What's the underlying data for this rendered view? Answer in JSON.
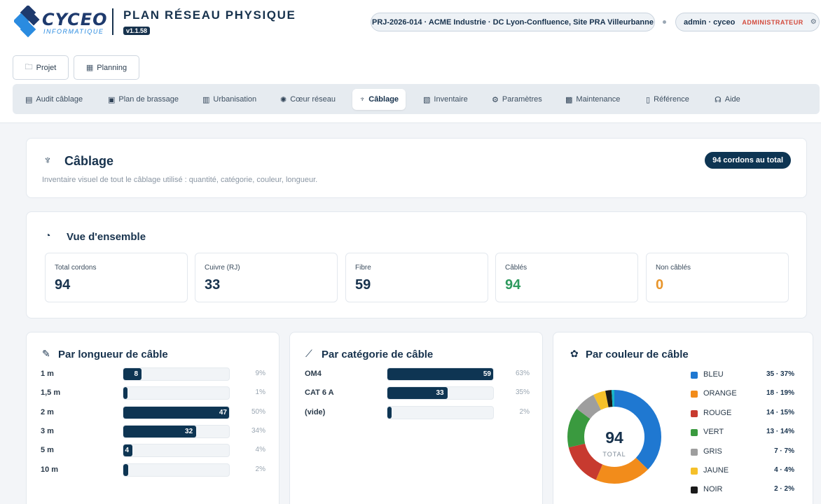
{
  "brand": {
    "logo_word": "CYCEO",
    "logo_sub": "INFORMATIQUE",
    "app_title": "PLAN RÉSEAU PHYSIQUE",
    "version": "v1.1.58"
  },
  "header": {
    "project": "PRJ-2026-014 · ACME Industrie · DC Lyon-Confluence, Site PRA Villeurbanne",
    "user": "admin · cyceo",
    "role": "ADMINISTRATEUR"
  },
  "buttons": {
    "projet": "Projet",
    "planning": "Planning"
  },
  "tabs": [
    {
      "label": "Audit câblage",
      "icon": "keyboard-icon"
    },
    {
      "label": "Plan de brassage",
      "icon": "patch-icon"
    },
    {
      "label": "Urbanisation",
      "icon": "building-icon"
    },
    {
      "label": "Cœur réseau",
      "icon": "network-icon"
    },
    {
      "label": "Câblage",
      "icon": "plug-icon"
    },
    {
      "label": "Inventaire",
      "icon": "inventory-icon"
    },
    {
      "label": "Paramètres",
      "icon": "gear-icon"
    },
    {
      "label": "Maintenance",
      "icon": "floppy-icon"
    },
    {
      "label": "Référence",
      "icon": "document-icon"
    },
    {
      "label": "Aide",
      "icon": "headset-icon"
    }
  ],
  "active_tab": "Câblage",
  "page": {
    "title": "Câblage",
    "subtitle": "Inventaire visuel de tout le câblage utilisé : quantité, catégorie, couleur, longueur.",
    "badge": "94 cordons au total"
  },
  "overview": {
    "title": "Vue d'ensemble",
    "stats": [
      {
        "label": "Total cordons",
        "value": "94",
        "color": "#17324d"
      },
      {
        "label": "Cuivre (RJ)",
        "value": "33",
        "color": "#17324d"
      },
      {
        "label": "Fibre",
        "value": "59",
        "color": "#17324d"
      },
      {
        "label": "Câblés",
        "value": "94",
        "color": "#2e9a5e"
      },
      {
        "label": "Non câblés",
        "value": "0",
        "color": "#e8952b"
      }
    ]
  },
  "chart_data": [
    {
      "type": "bar",
      "title": "Par longueur de câble",
      "categories": [
        "1 m",
        "1,5 m",
        "2 m",
        "3 m",
        "5 m",
        "10 m"
      ],
      "values": [
        8,
        1,
        47,
        32,
        4,
        2
      ],
      "labels": [
        "8",
        "",
        "47",
        "32",
        "4",
        ""
      ],
      "percents": [
        "9%",
        "1%",
        "50%",
        "34%",
        "4%",
        "2%"
      ],
      "xlim": [
        0,
        47
      ]
    },
    {
      "type": "bar",
      "title": "Par catégorie de câble",
      "categories": [
        "OM4",
        "CAT 6 A",
        "(vide)"
      ],
      "values": [
        59,
        33,
        2
      ],
      "labels": [
        "59",
        "33",
        ""
      ],
      "percents": [
        "63%",
        "35%",
        "2%"
      ],
      "xlim": [
        0,
        59
      ]
    },
    {
      "type": "pie",
      "title": "Par couleur de câble",
      "center_value": "94",
      "center_label": "TOTAL",
      "slices": [
        {
          "name": "BLEU",
          "value": 35,
          "label": "35 · 37%",
          "color": "#1f78d1"
        },
        {
          "name": "ORANGE",
          "value": 18,
          "label": "18 · 19%",
          "color": "#f28c1b"
        },
        {
          "name": "ROUGE",
          "value": 14,
          "label": "14 · 15%",
          "color": "#c73a2f"
        },
        {
          "name": "VERT",
          "value": 13,
          "label": "13 · 14%",
          "color": "#3a9a3f"
        },
        {
          "name": "GRIS",
          "value": 7,
          "label": "7 · 7%",
          "color": "#9e9e9e"
        },
        {
          "name": "JAUNE",
          "value": 4,
          "label": "4 · 4%",
          "color": "#f5c02a"
        },
        {
          "name": "NOIR",
          "value": 2,
          "label": "2 · 2%",
          "color": "#1a1a1a"
        },
        {
          "name": "",
          "value": 1,
          "label": "",
          "color": "#17b5c9"
        }
      ]
    }
  ]
}
